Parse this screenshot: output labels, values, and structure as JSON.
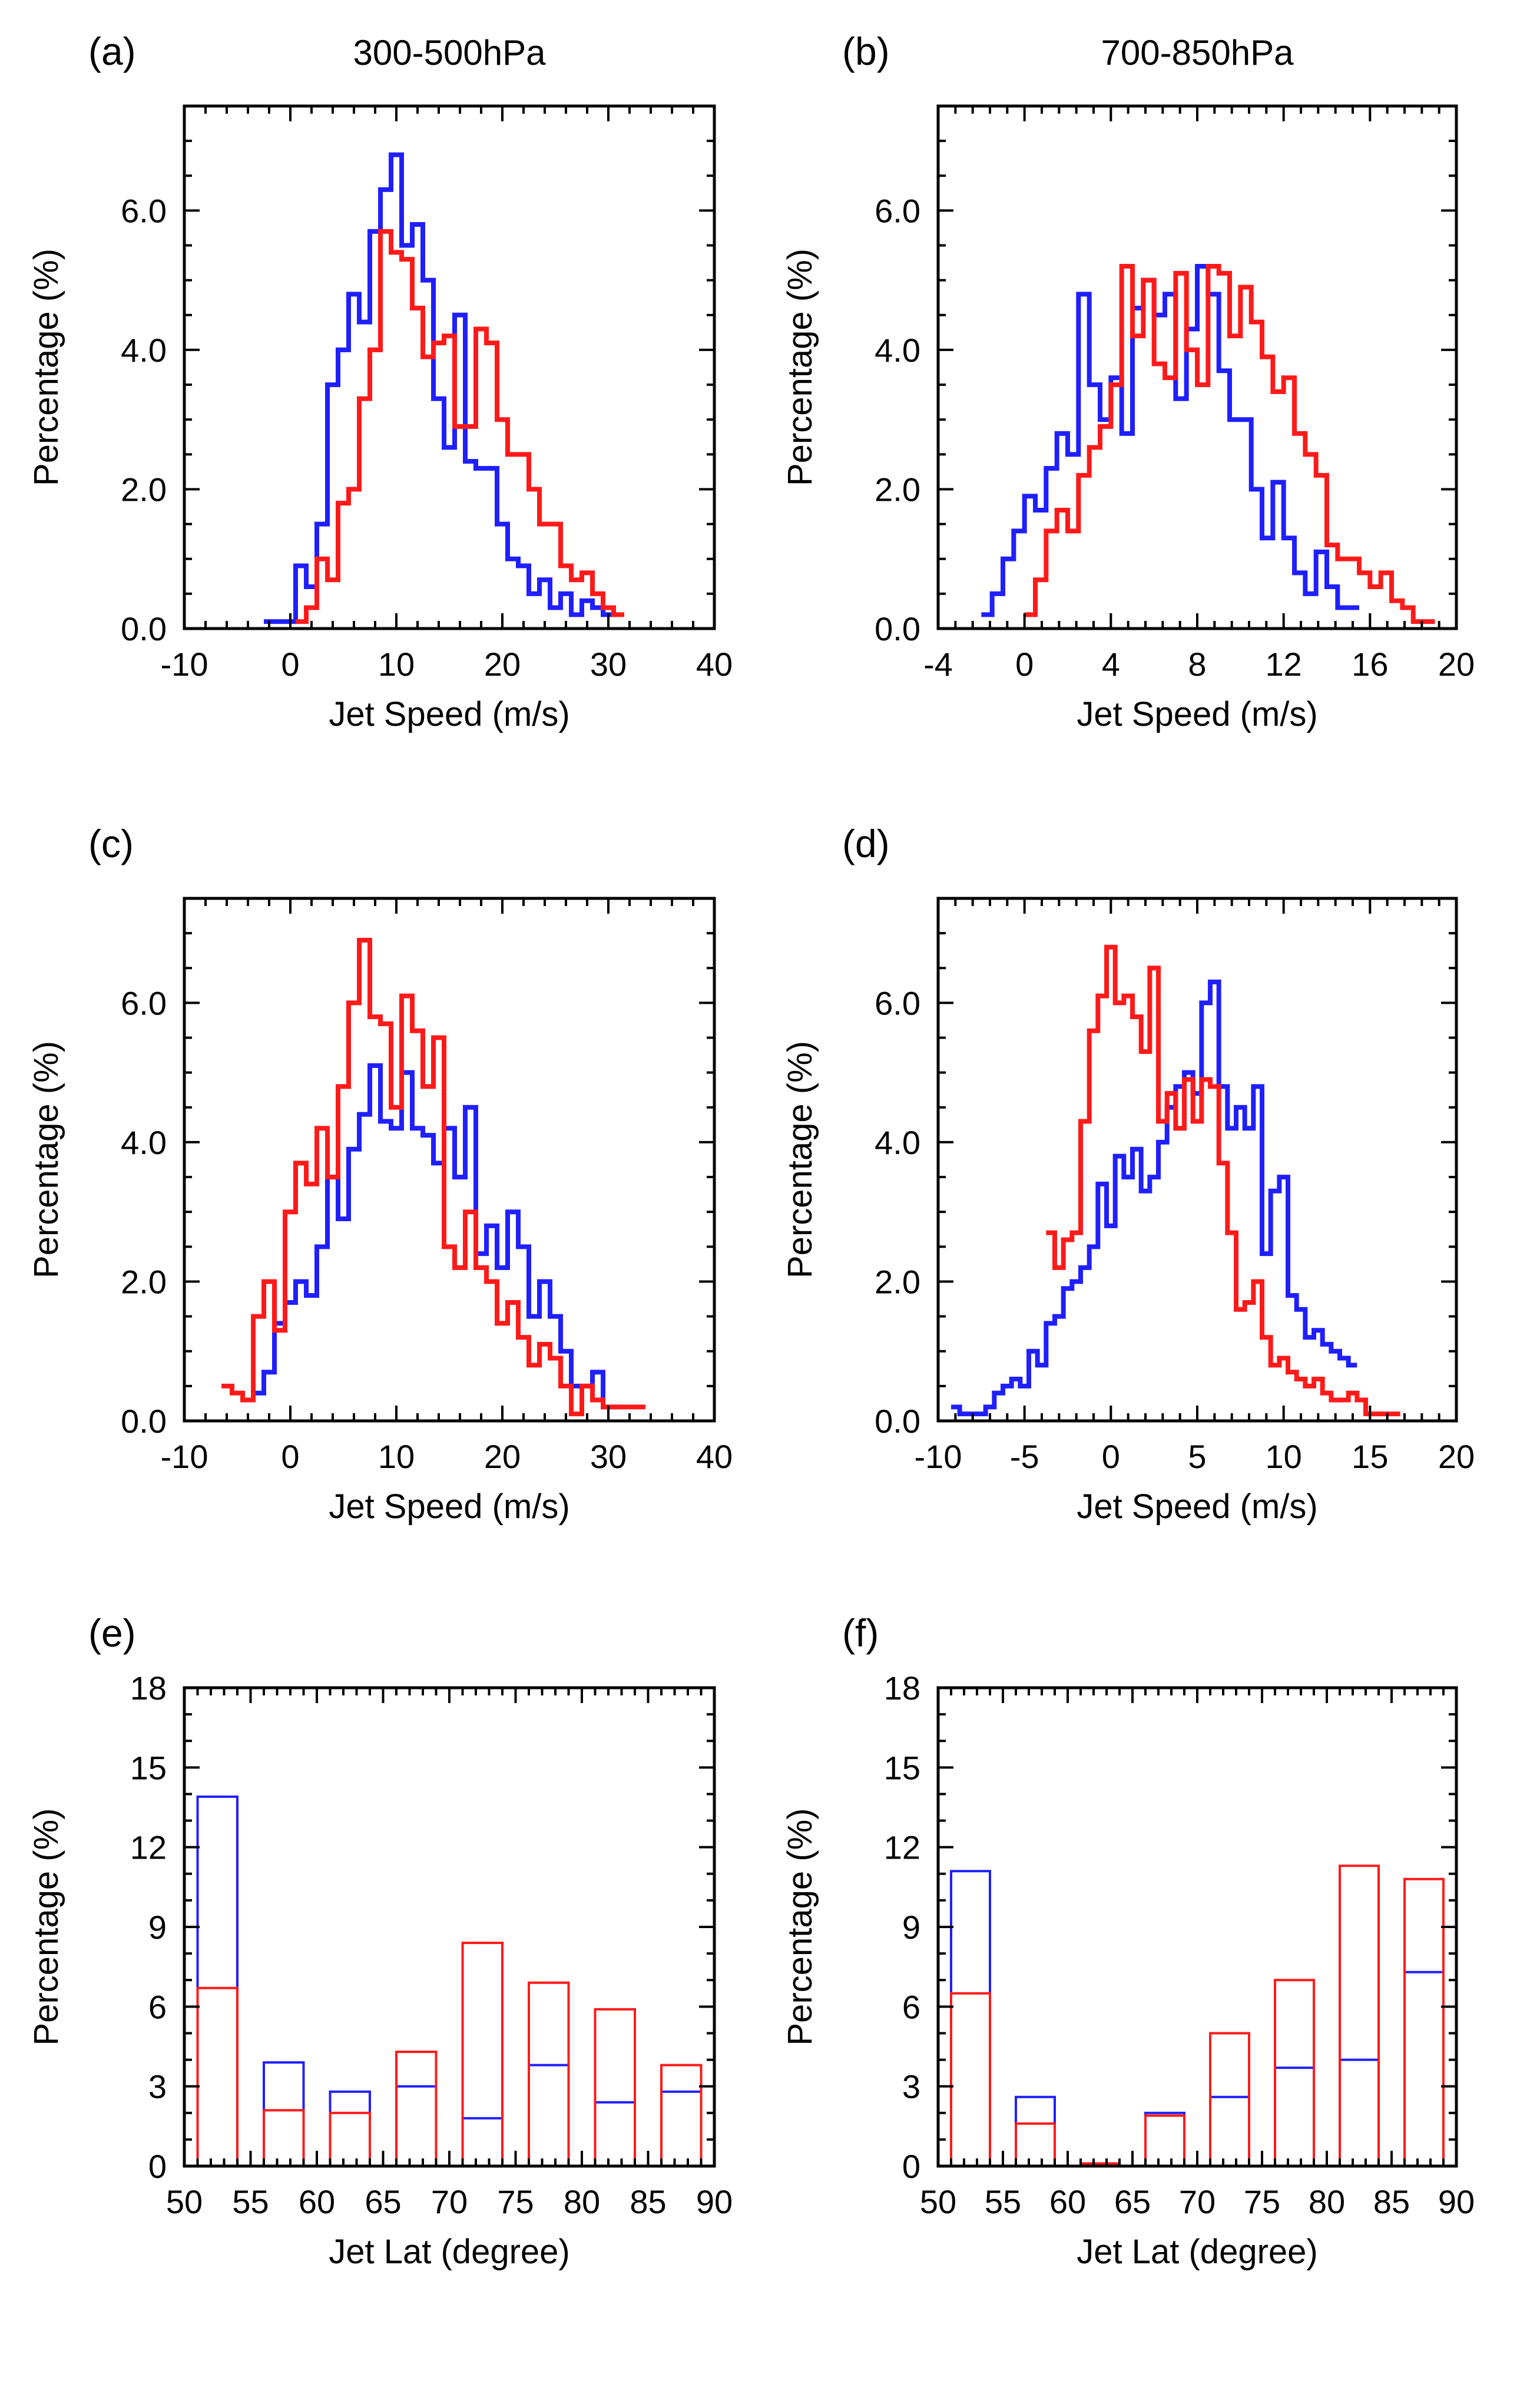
{
  "figure": {
    "series_colors": {
      "blue": "#1f1fff",
      "red": "#ff1a1a"
    },
    "panels": [
      {
        "id": "a",
        "label": "(a)",
        "title": "300-500hPa",
        "xlabel": "Jet Speed (m/s)",
        "ylabel": "Percentage (%)"
      },
      {
        "id": "b",
        "label": "(b)",
        "title": "700-850hPa",
        "xlabel": "Jet Speed (m/s)",
        "ylabel": "Percentage (%)"
      },
      {
        "id": "c",
        "label": "(c)",
        "title": "",
        "xlabel": "Jet Speed (m/s)",
        "ylabel": "Percentage (%)"
      },
      {
        "id": "d",
        "label": "(d)",
        "title": "",
        "xlabel": "Jet Speed (m/s)",
        "ylabel": "Percentage (%)"
      },
      {
        "id": "e",
        "label": "(e)",
        "title": "",
        "xlabel": "Jet Lat (degree)",
        "ylabel": "Percentage (%)"
      },
      {
        "id": "f",
        "label": "(f)",
        "title": "",
        "xlabel": "Jet Lat (degree)",
        "ylabel": "Percentage (%)"
      }
    ]
  },
  "chart_data": [
    {
      "id": "a",
      "type": "line",
      "step": true,
      "title": "300-500hPa",
      "xlabel": "Jet Speed (m/s)",
      "ylabel": "Percentage (%)",
      "xlim": [
        -10,
        40
      ],
      "ylim": [
        0,
        7.5
      ],
      "xticks": [
        -10,
        0,
        10,
        20,
        30,
        40
      ],
      "xtick_labels": [
        "-10",
        "0",
        "10",
        "20",
        "30",
        "40"
      ],
      "yticks": [
        0,
        2,
        4,
        6
      ],
      "ytick_labels": [
        "0.0",
        "2.0",
        "4.0",
        "6.0"
      ],
      "series": [
        {
          "name": "blue",
          "color": "#1f1fff",
          "x": [
            -2,
            -1,
            0,
            1,
            2,
            3,
            4,
            5,
            6,
            7,
            8,
            9,
            10,
            11,
            12,
            13,
            14,
            15,
            16,
            17,
            18,
            19,
            20,
            21,
            22,
            23,
            24,
            25,
            26,
            27,
            28,
            29,
            30
          ],
          "y": [
            0.1,
            0.1,
            0.1,
            0.9,
            0.6,
            1.5,
            3.5,
            4.0,
            4.8,
            4.4,
            5.7,
            6.3,
            6.8,
            5.5,
            5.8,
            5.0,
            3.3,
            2.6,
            4.5,
            2.4,
            2.3,
            2.3,
            1.5,
            1.0,
            0.9,
            0.5,
            0.7,
            0.3,
            0.5,
            0.2,
            0.4,
            0.3,
            0.2
          ]
        },
        {
          "name": "red",
          "color": "#ff1a1a",
          "x": [
            1,
            2,
            3,
            4,
            5,
            6,
            7,
            8,
            9,
            10,
            11,
            12,
            13,
            14,
            15,
            16,
            17,
            18,
            19,
            20,
            21,
            22,
            23,
            24,
            25,
            26,
            27,
            28,
            29,
            30,
            31
          ],
          "y": [
            0.1,
            0.3,
            1.0,
            0.7,
            1.8,
            2.0,
            3.3,
            4.0,
            5.7,
            5.4,
            5.3,
            4.6,
            3.9,
            4.1,
            4.2,
            2.9,
            2.9,
            4.3,
            4.1,
            3.0,
            2.5,
            2.5,
            2.0,
            1.5,
            1.5,
            0.9,
            0.7,
            0.8,
            0.5,
            0.3,
            0.2
          ]
        }
      ]
    },
    {
      "id": "b",
      "type": "line",
      "step": true,
      "title": "700-850hPa",
      "xlabel": "Jet Speed (m/s)",
      "ylabel": "Percentage (%)",
      "xlim": [
        -4,
        20
      ],
      "ylim": [
        0,
        7.5
      ],
      "xticks": [
        -4,
        0,
        4,
        8,
        12,
        16,
        20
      ],
      "xtick_labels": [
        "-4",
        "0",
        "4",
        "8",
        "12",
        "16",
        "20"
      ],
      "yticks": [
        0,
        2,
        4,
        6
      ],
      "ytick_labels": [
        "0.0",
        "2.0",
        "4.0",
        "6.0"
      ],
      "series": [
        {
          "name": "blue",
          "color": "#1f1fff",
          "x": [
            -1.75,
            -1.25,
            -0.75,
            -0.25,
            0.25,
            0.75,
            1.25,
            1.75,
            2.25,
            2.75,
            3.25,
            3.75,
            4.25,
            4.75,
            5.25,
            5.75,
            6.25,
            6.75,
            7.25,
            7.75,
            8.25,
            8.75,
            9.25,
            9.75,
            10.25,
            10.75,
            11.25,
            11.75,
            12.25,
            12.75,
            13.25,
            13.75,
            14.25,
            14.75,
            15.25
          ],
          "y": [
            0.2,
            0.5,
            1.0,
            1.4,
            1.9,
            1.7,
            2.3,
            2.8,
            2.5,
            4.8,
            3.5,
            3.0,
            3.6,
            2.8,
            4.6,
            5.0,
            4.5,
            4.8,
            3.3,
            4.3,
            5.2,
            4.8,
            3.7,
            3.0,
            3.0,
            2.0,
            1.3,
            2.1,
            1.3,
            0.8,
            0.5,
            1.1,
            0.6,
            0.3,
            0.3
          ]
        },
        {
          "name": "red",
          "color": "#ff1a1a",
          "x": [
            0.25,
            0.75,
            1.25,
            1.75,
            2.25,
            2.75,
            3.25,
            3.75,
            4.25,
            4.75,
            5.25,
            5.75,
            6.25,
            6.75,
            7.25,
            7.75,
            8.25,
            8.75,
            9.25,
            9.75,
            10.25,
            10.75,
            11.25,
            11.75,
            12.25,
            12.75,
            13.25,
            13.75,
            14.25,
            14.75,
            15.25,
            15.75,
            16.25,
            16.75,
            17.25,
            17.75,
            18.25,
            18.75
          ],
          "y": [
            0.2,
            0.7,
            1.4,
            1.7,
            1.4,
            2.2,
            2.6,
            2.9,
            3.5,
            5.2,
            4.2,
            5.0,
            3.8,
            3.6,
            5.1,
            4.0,
            3.5,
            5.2,
            5.1,
            4.2,
            4.9,
            4.4,
            3.9,
            3.4,
            3.6,
            2.8,
            2.5,
            2.2,
            1.2,
            1.0,
            1.0,
            0.8,
            0.6,
            0.8,
            0.4,
            0.3,
            0.1,
            0.1
          ]
        }
      ]
    },
    {
      "id": "c",
      "type": "line",
      "step": true,
      "title": "",
      "xlabel": "Jet Speed (m/s)",
      "ylabel": "Percentage (%)",
      "xlim": [
        -10,
        40
      ],
      "ylim": [
        0,
        7.5
      ],
      "xticks": [
        -10,
        0,
        10,
        20,
        30,
        40
      ],
      "xtick_labels": [
        "-10",
        "0",
        "10",
        "20",
        "30",
        "40"
      ],
      "yticks": [
        0,
        2,
        4,
        6
      ],
      "ytick_labels": [
        "0.0",
        "2.0",
        "4.0",
        "6.0"
      ],
      "series": [
        {
          "name": "blue",
          "color": "#1f1fff",
          "x": [
            -4,
            -3,
            -2,
            -1,
            0,
            1,
            2,
            3,
            4,
            5,
            6,
            7,
            8,
            9,
            10,
            11,
            12,
            13,
            14,
            15,
            16,
            17,
            18,
            19,
            20,
            21,
            22,
            23,
            24,
            25,
            26,
            27,
            28,
            29,
            30,
            31
          ],
          "y": [
            0.3,
            0.4,
            0.7,
            1.4,
            1.7,
            2.0,
            1.8,
            2.5,
            3.5,
            2.9,
            3.9,
            4.4,
            5.1,
            4.3,
            4.2,
            5.0,
            4.2,
            4.1,
            3.7,
            4.2,
            3.5,
            4.5,
            2.4,
            2.8,
            2.2,
            3.0,
            2.5,
            1.5,
            2.0,
            1.5,
            1.0,
            0.5,
            0.5,
            0.7,
            0.2,
            0.2
          ]
        },
        {
          "name": "red",
          "color": "#ff1a1a",
          "x": [
            -6,
            -5,
            -4,
            -3,
            -2,
            -1,
            0,
            1,
            2,
            3,
            4,
            5,
            6,
            7,
            8,
            9,
            10,
            11,
            12,
            13,
            14,
            15,
            16,
            17,
            18,
            19,
            20,
            21,
            22,
            23,
            24,
            25,
            26,
            27,
            28,
            29,
            30,
            31,
            32,
            33
          ],
          "y": [
            0.5,
            0.4,
            0.3,
            1.5,
            2.0,
            1.3,
            3.0,
            3.7,
            3.4,
            4.2,
            3.5,
            4.8,
            6.0,
            6.9,
            5.8,
            5.7,
            4.5,
            6.1,
            5.6,
            4.8,
            5.5,
            2.5,
            2.2,
            3.0,
            2.2,
            2.0,
            1.4,
            1.7,
            1.2,
            0.8,
            1.1,
            0.9,
            0.5,
            0.1,
            0.5,
            0.3,
            0.2,
            0.2,
            0.2,
            0.2
          ]
        }
      ]
    },
    {
      "id": "d",
      "type": "line",
      "step": true,
      "title": "",
      "xlabel": "Jet Speed (m/s)",
      "ylabel": "Percentage (%)",
      "xlim": [
        -10,
        20
      ],
      "ylim": [
        0,
        7.5
      ],
      "xticks": [
        -10,
        -5,
        0,
        5,
        10,
        15,
        20
      ],
      "xtick_labels": [
        "-10",
        "-5",
        "0",
        "5",
        "10",
        "15",
        "20"
      ],
      "yticks": [
        0,
        2,
        4,
        6
      ],
      "ytick_labels": [
        "0.0",
        "2.0",
        "4.0",
        "6.0"
      ],
      "series": [
        {
          "name": "blue",
          "color": "#1f1fff",
          "x": [
            -9,
            -8.5,
            -8,
            -7.5,
            -7,
            -6.5,
            -6,
            -5.5,
            -5,
            -4.5,
            -4,
            -3.5,
            -3,
            -2.5,
            -2,
            -1.5,
            -1,
            -0.5,
            0,
            0.5,
            1,
            1.5,
            2,
            2.5,
            3,
            3.5,
            4,
            4.5,
            5,
            5.5,
            6,
            6.5,
            7,
            7.5,
            8,
            8.5,
            9,
            9.5,
            10,
            10.5,
            11,
            11.5,
            12,
            12.5,
            13,
            13.5,
            14
          ],
          "y": [
            0.2,
            0.1,
            0.1,
            0.1,
            0.2,
            0.4,
            0.5,
            0.6,
            0.5,
            1.0,
            0.8,
            1.4,
            1.5,
            1.9,
            2.0,
            2.2,
            2.5,
            3.4,
            2.8,
            3.8,
            3.5,
            3.9,
            3.3,
            3.5,
            4.0,
            4.5,
            4.8,
            5.0,
            4.7,
            6.0,
            6.3,
            4.8,
            4.2,
            4.5,
            4.2,
            4.8,
            2.4,
            3.3,
            3.5,
            1.8,
            1.6,
            1.2,
            1.3,
            1.1,
            1.0,
            0.9,
            0.8
          ]
        },
        {
          "name": "red",
          "color": "#ff1a1a",
          "x": [
            -3.5,
            -3,
            -2.5,
            -2,
            -1.5,
            -1,
            -0.5,
            0,
            0.5,
            1,
            1.5,
            2,
            2.5,
            3,
            3.5,
            4,
            4.5,
            5,
            5.5,
            6,
            6.5,
            7,
            7.5,
            8,
            8.5,
            9,
            9.5,
            10,
            10.5,
            11,
            11.5,
            12,
            12.5,
            13,
            13.5,
            14,
            14.5,
            15,
            15.5,
            16,
            16.5
          ],
          "y": [
            2.7,
            2.2,
            2.6,
            2.7,
            4.3,
            5.6,
            6.1,
            6.8,
            6.0,
            6.1,
            5.8,
            5.3,
            6.5,
            4.3,
            4.7,
            4.2,
            4.9,
            4.3,
            4.9,
            4.8,
            3.7,
            2.7,
            1.6,
            1.7,
            2.0,
            1.2,
            0.8,
            0.9,
            0.7,
            0.6,
            0.5,
            0.6,
            0.4,
            0.3,
            0.3,
            0.4,
            0.3,
            0.1,
            0.1,
            0.1,
            0.1
          ]
        }
      ]
    },
    {
      "id": "e",
      "type": "bar",
      "title": "",
      "xlabel": "Jet Lat (degree)",
      "ylabel": "Percentage (%)",
      "xlim": [
        50,
        90
      ],
      "ylim": [
        0,
        18
      ],
      "xticks": [
        50,
        55,
        60,
        65,
        70,
        75,
        80,
        85,
        90
      ],
      "xtick_labels": [
        "50",
        "55",
        "60",
        "65",
        "70",
        "75",
        "80",
        "85",
        "90"
      ],
      "yticks": [
        0,
        3,
        6,
        9,
        12,
        15,
        18
      ],
      "ytick_labels": [
        "0",
        "3",
        "6",
        "9",
        "12",
        "15",
        "18"
      ],
      "categories": [
        "52.5",
        "57.5",
        "62.5",
        "67.5",
        "72.5",
        "77.5",
        "82.5",
        "87.5"
      ],
      "bin_edges": [
        [
          51,
          54
        ],
        [
          56,
          59
        ],
        [
          61,
          64
        ],
        [
          66,
          69
        ],
        [
          71,
          74
        ],
        [
          76,
          79
        ],
        [
          81,
          84
        ],
        [
          86,
          89
        ]
      ],
      "series": [
        {
          "name": "blue",
          "color": "#1f1fff",
          "values": [
            13.9,
            3.9,
            2.8,
            3.0,
            1.8,
            3.8,
            2.4,
            2.8
          ]
        },
        {
          "name": "red",
          "color": "#ff1a1a",
          "values": [
            6.7,
            2.1,
            2.0,
            4.3,
            8.4,
            6.9,
            5.9,
            3.8
          ]
        }
      ]
    },
    {
      "id": "f",
      "type": "bar",
      "title": "",
      "xlabel": "Jet Lat (degree)",
      "ylabel": "Percentage (%)",
      "xlim": [
        50,
        90
      ],
      "ylim": [
        0,
        18
      ],
      "xticks": [
        50,
        55,
        60,
        65,
        70,
        75,
        80,
        85,
        90
      ],
      "xtick_labels": [
        "50",
        "55",
        "60",
        "65",
        "70",
        "75",
        "80",
        "85",
        "90"
      ],
      "yticks": [
        0,
        3,
        6,
        9,
        12,
        15,
        18
      ],
      "ytick_labels": [
        "0",
        "3",
        "6",
        "9",
        "12",
        "15",
        "18"
      ],
      "categories": [
        "52.5",
        "57.5",
        "62.5",
        "67.5",
        "72.5",
        "77.5",
        "82.5",
        "87.5"
      ],
      "bin_edges": [
        [
          51,
          54
        ],
        [
          56,
          59
        ],
        [
          61,
          64
        ],
        [
          66,
          69
        ],
        [
          71,
          74
        ],
        [
          76,
          79
        ],
        [
          81,
          84
        ],
        [
          86,
          89
        ]
      ],
      "series": [
        {
          "name": "blue",
          "color": "#1f1fff",
          "values": [
            11.1,
            2.6,
            0.1,
            2.0,
            2.6,
            3.7,
            4.0,
            7.3
          ]
        },
        {
          "name": "red",
          "color": "#ff1a1a",
          "values": [
            6.5,
            1.6,
            0.1,
            1.9,
            5.0,
            7.0,
            11.3,
            10.8
          ]
        }
      ]
    }
  ]
}
